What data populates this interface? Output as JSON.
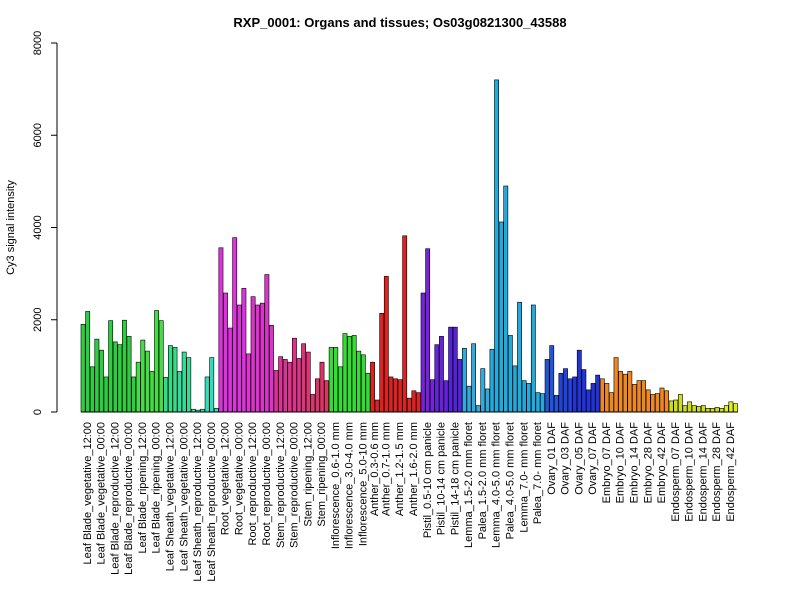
{
  "chart_data": {
    "type": "bar",
    "title": "RXP_0001: Organs and tissues; Os03g0821300_43588",
    "xlabel": "",
    "ylabel": "Cy3 signal intensity",
    "ylim": [
      0,
      8000
    ],
    "yticks": [
      0,
      2000,
      4000,
      6000,
      8000
    ],
    "grid": false,
    "legend": "none",
    "groups": [
      {
        "label": "Leaf Blade_vegetative_12:00",
        "color": "#2ecc40",
        "values": [
          1900,
          2180,
          980
        ]
      },
      {
        "label": "Leaf Blade_vegetative_00:00",
        "color": "#2ecc40",
        "values": [
          1580,
          1340,
          760
        ]
      },
      {
        "label": "Leaf Blade_reproductive_12:00",
        "color": "#2ecc40",
        "values": [
          1980,
          1520,
          1460
        ]
      },
      {
        "label": "Leaf Blade_reproductive_00:00",
        "color": "#2ecc40",
        "values": [
          1990,
          1640,
          760
        ]
      },
      {
        "label": "Leaf Blade_ripening_12:00",
        "color": "#44dd44",
        "values": [
          1080,
          1560,
          1320
        ]
      },
      {
        "label": "Leaf Blade_ripening_00:00",
        "color": "#44dd44",
        "values": [
          880,
          2200,
          1980
        ]
      },
      {
        "label": "Leaf Sheath_vegetative_12:00",
        "color": "#33dd88",
        "values": [
          750,
          1440,
          1400
        ]
      },
      {
        "label": "Leaf Sheath_vegetative_00:00",
        "color": "#33dd99",
        "values": [
          880,
          1300,
          1180
        ]
      },
      {
        "label": "Leaf Sheath_reproductive_12:00",
        "color": "#33ddaa",
        "values": [
          60,
          40,
          60
        ]
      },
      {
        "label": "Leaf Sheath_reproductive_00:00",
        "color": "#33ddbb",
        "values": [
          760,
          1180,
          80
        ]
      },
      {
        "label": "Root_vegetative_12:00",
        "color": "#dd33dd",
        "values": [
          3560,
          2580,
          1820
        ]
      },
      {
        "label": "Root_vegetative_00:00",
        "color": "#dd33dd",
        "values": [
          3780,
          2320,
          2680
        ]
      },
      {
        "label": "Root_reproductive_12:00",
        "color": "#dd33cc",
        "values": [
          1260,
          2500,
          2320
        ]
      },
      {
        "label": "Root_reproductive_00:00",
        "color": "#dd33cc",
        "values": [
          2360,
          2980,
          1880
        ]
      },
      {
        "label": "Stem_reproductive_12:00",
        "color": "#dd3399",
        "values": [
          900,
          1200,
          1140
        ]
      },
      {
        "label": "Stem_reproductive_00:00",
        "color": "#dd3388",
        "values": [
          1080,
          1600,
          1160
        ]
      },
      {
        "label": "Stem_ripening_12:00",
        "color": "#dd3377",
        "values": [
          1480,
          1300,
          380
        ]
      },
      {
        "label": "Stem_ripening_00:00",
        "color": "#dd3366",
        "values": [
          720,
          1080,
          680
        ]
      },
      {
        "label": "Inflorescence_0.6-1.0 mm",
        "color": "#33dd33",
        "values": [
          1400,
          1400,
          980
        ]
      },
      {
        "label": "Inflorescence_3.0-4.0 mm",
        "color": "#33dd33",
        "values": [
          1700,
          1640,
          1660
        ]
      },
      {
        "label": "Inflorescence_5.0-10 mm",
        "color": "#33dd33",
        "values": [
          1320,
          1240,
          840
        ]
      },
      {
        "label": "Anther_0.3-0.6 mm",
        "color": "#dd2222",
        "values": [
          1080,
          260
        ]
      },
      {
        "label": "Anther_0.7-1.0 mm",
        "color": "#dd2222",
        "values": [
          2140,
          2940,
          760
        ]
      },
      {
        "label": "Anther_1.2-1.5 mm",
        "color": "#dd2222",
        "values": [
          720,
          700,
          3820
        ]
      },
      {
        "label": "Anther_1.6-2.0 mm",
        "color": "#dd2222",
        "values": [
          300,
          460,
          420
        ]
      },
      {
        "label": "Pistil_0.5-10 cm panicle",
        "color": "#7722dd",
        "values": [
          2580,
          3540,
          700
        ]
      },
      {
        "label": "Pistil_10-14 cm panicle",
        "color": "#6622dd",
        "values": [
          1460,
          1640,
          680
        ]
      },
      {
        "label": "Pistil_14-18 cm panicle",
        "color": "#5522dd",
        "values": [
          1840,
          1840,
          1140
        ]
      },
      {
        "label": "Lemma_1.5-2.0 mm floret",
        "color": "#33aadd",
        "values": [
          1380,
          560,
          1480
        ]
      },
      {
        "label": "Palea_1.5-2.0 mm floret",
        "color": "#33aadd",
        "values": [
          140,
          940,
          500
        ]
      },
      {
        "label": "Lemma_4.0-5.0 mm floret",
        "color": "#22aadd",
        "values": [
          1360,
          7200,
          4120
        ]
      },
      {
        "label": "Palea_4.0-5.0 mm floret",
        "color": "#22aadd",
        "values": [
          4900,
          1660,
          1000
        ]
      },
      {
        "label": "Lemma_7.0- mm floret",
        "color": "#22aadd",
        "values": [
          2380,
          680,
          620
        ]
      },
      {
        "label": "Palea_7.0- mm floret",
        "color": "#22aadd",
        "values": [
          2320,
          420,
          400
        ]
      },
      {
        "label": "Ovary_01 DAF",
        "color": "#2255dd",
        "values": [
          1140,
          1440,
          360
        ]
      },
      {
        "label": "Ovary_03 DAF",
        "color": "#2244dd",
        "values": [
          840,
          940,
          720
        ]
      },
      {
        "label": "Ovary_05 DAF",
        "color": "#2233dd",
        "values": [
          760,
          1340,
          920
        ]
      },
      {
        "label": "Ovary_07 DAF",
        "color": "#2233dd",
        "values": [
          480,
          620,
          800
        ]
      },
      {
        "label": "Embryo_07 DAF",
        "color": "#ee8822",
        "values": [
          720,
          620,
          420
        ]
      },
      {
        "label": "Embryo_10 DAF",
        "color": "#ee8822",
        "values": [
          1180,
          880,
          820
        ]
      },
      {
        "label": "Embryo_14 DAF",
        "color": "#ee8822",
        "values": [
          880,
          600,
          680
        ]
      },
      {
        "label": "Embryo_28 DAF",
        "color": "#ee8822",
        "values": [
          680,
          480,
          380
        ]
      },
      {
        "label": "Embryo_42 DAF",
        "color": "#ee8822",
        "values": [
          400,
          520,
          460
        ]
      },
      {
        "label": "Endosperm_07 DAF",
        "color": "#ccdd22",
        "values": [
          240,
          260,
          380
        ]
      },
      {
        "label": "Endosperm_10 DAF",
        "color": "#ccdd22",
        "values": [
          140,
          220,
          140
        ]
      },
      {
        "label": "Endosperm_14 DAF",
        "color": "#ccdd22",
        "values": [
          120,
          140,
          80
        ]
      },
      {
        "label": "Endosperm_28 DAF",
        "color": "#ccdd22",
        "values": [
          80,
          100,
          80
        ]
      },
      {
        "label": "Endosperm_42 DAF",
        "color": "#ddee22",
        "values": [
          140,
          220,
          180
        ]
      }
    ]
  }
}
